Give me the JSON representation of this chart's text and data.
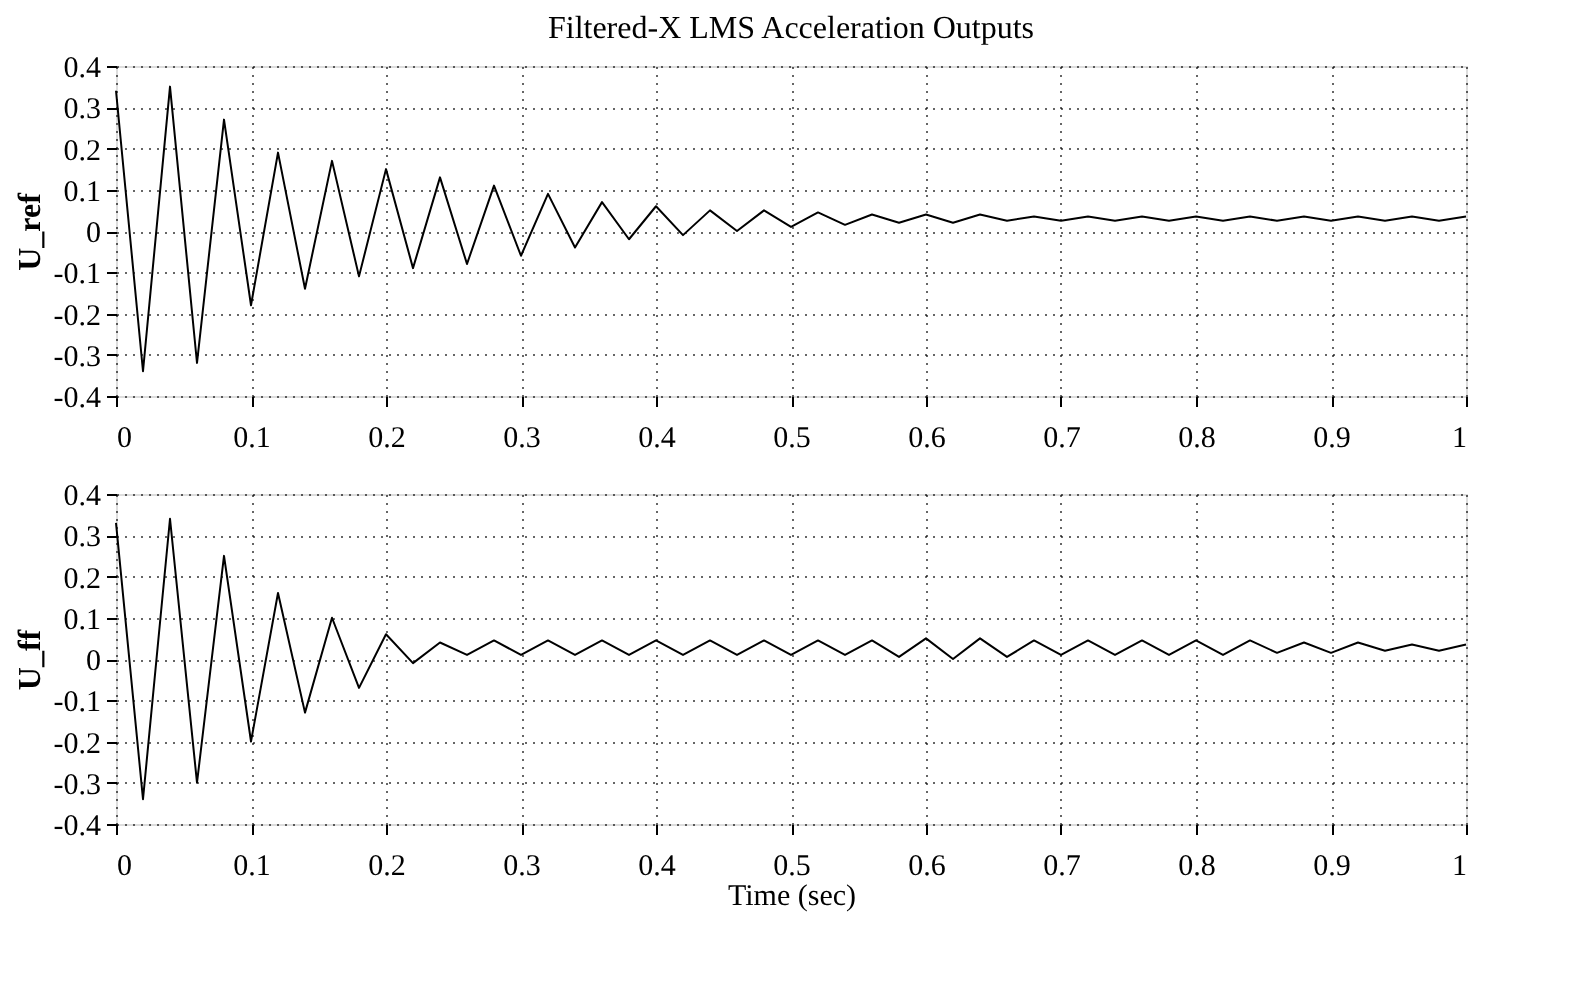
{
  "chart_data": [
    {
      "type": "line",
      "title": "Filtered-X LMS Acceleration Outputs",
      "ylabel": "U_ref",
      "xlim": [
        0,
        1
      ],
      "ylim": [
        -0.4,
        0.4
      ],
      "xticks": [
        0,
        0.1,
        0.2,
        0.3,
        0.4,
        0.5,
        0.6,
        0.7,
        0.8,
        0.9,
        1
      ],
      "yticks": [
        -0.4,
        -0.3,
        -0.2,
        -0.1,
        0,
        0.1,
        0.2,
        0.3,
        0.4
      ],
      "grid": true,
      "line_style": "solid",
      "marker": "none",
      "x": [
        0,
        0.02,
        0.04,
        0.06,
        0.08,
        0.1,
        0.12,
        0.14,
        0.16,
        0.18,
        0.2,
        0.22,
        0.24,
        0.26,
        0.28,
        0.3,
        0.32,
        0.34,
        0.36,
        0.38,
        0.4,
        0.42,
        0.44,
        0.46,
        0.48,
        0.5,
        0.52,
        0.54,
        0.56,
        0.58,
        0.6,
        0.62,
        0.64,
        0.66,
        0.68,
        0.7,
        0.72,
        0.74,
        0.76,
        0.78,
        0.8,
        0.82,
        0.84,
        0.86,
        0.88,
        0.9,
        0.92,
        0.94,
        0.96,
        0.98,
        1
      ],
      "series": [
        {
          "color": "#000000",
          "values": [
            0.34,
            -0.34,
            0.35,
            -0.32,
            0.27,
            -0.18,
            0.19,
            -0.14,
            0.17,
            -0.11,
            0.15,
            -0.09,
            0.13,
            -0.08,
            0.11,
            -0.06,
            0.09,
            -0.04,
            0.07,
            -0.02,
            0.06,
            -0.01,
            0.05,
            0.0,
            0.05,
            0.01,
            0.045,
            0.015,
            0.04,
            0.02,
            0.04,
            0.02,
            0.04,
            0.025,
            0.035,
            0.025,
            0.035,
            0.025,
            0.035,
            0.025,
            0.035,
            0.025,
            0.035,
            0.025,
            0.035,
            0.025,
            0.035,
            0.025,
            0.035,
            0.025,
            0.035
          ]
        }
      ]
    },
    {
      "type": "line",
      "xlabel": "Time (sec)",
      "ylabel": "U_ff",
      "xlim": [
        0,
        1
      ],
      "ylim": [
        -0.4,
        0.4
      ],
      "xticks": [
        0,
        0.1,
        0.2,
        0.3,
        0.4,
        0.5,
        0.6,
        0.7,
        0.8,
        0.9,
        1
      ],
      "yticks": [
        -0.4,
        -0.3,
        -0.2,
        -0.1,
        0,
        0.1,
        0.2,
        0.3,
        0.4
      ],
      "grid": true,
      "line_style": "solid",
      "marker": "none",
      "x": [
        0,
        0.02,
        0.04,
        0.06,
        0.08,
        0.1,
        0.12,
        0.14,
        0.16,
        0.18,
        0.2,
        0.22,
        0.24,
        0.26,
        0.28,
        0.3,
        0.32,
        0.34,
        0.36,
        0.38,
        0.4,
        0.42,
        0.44,
        0.46,
        0.48,
        0.5,
        0.52,
        0.54,
        0.56,
        0.58,
        0.6,
        0.62,
        0.64,
        0.66,
        0.68,
        0.7,
        0.72,
        0.74,
        0.76,
        0.78,
        0.8,
        0.82,
        0.84,
        0.86,
        0.88,
        0.9,
        0.92,
        0.94,
        0.96,
        0.98,
        1
      ],
      "series": [
        {
          "color": "#000000",
          "values": [
            0.33,
            -0.34,
            0.34,
            -0.3,
            0.25,
            -0.2,
            0.16,
            -0.13,
            0.1,
            -0.07,
            0.06,
            -0.01,
            0.04,
            0.01,
            0.045,
            0.01,
            0.045,
            0.01,
            0.045,
            0.01,
            0.045,
            0.01,
            0.045,
            0.01,
            0.045,
            0.01,
            0.045,
            0.01,
            0.045,
            0.005,
            0.05,
            0.0,
            0.05,
            0.005,
            0.045,
            0.01,
            0.045,
            0.01,
            0.045,
            0.01,
            0.045,
            0.01,
            0.045,
            0.015,
            0.04,
            0.015,
            0.04,
            0.02,
            0.035,
            0.02,
            0.035
          ]
        }
      ]
    }
  ]
}
